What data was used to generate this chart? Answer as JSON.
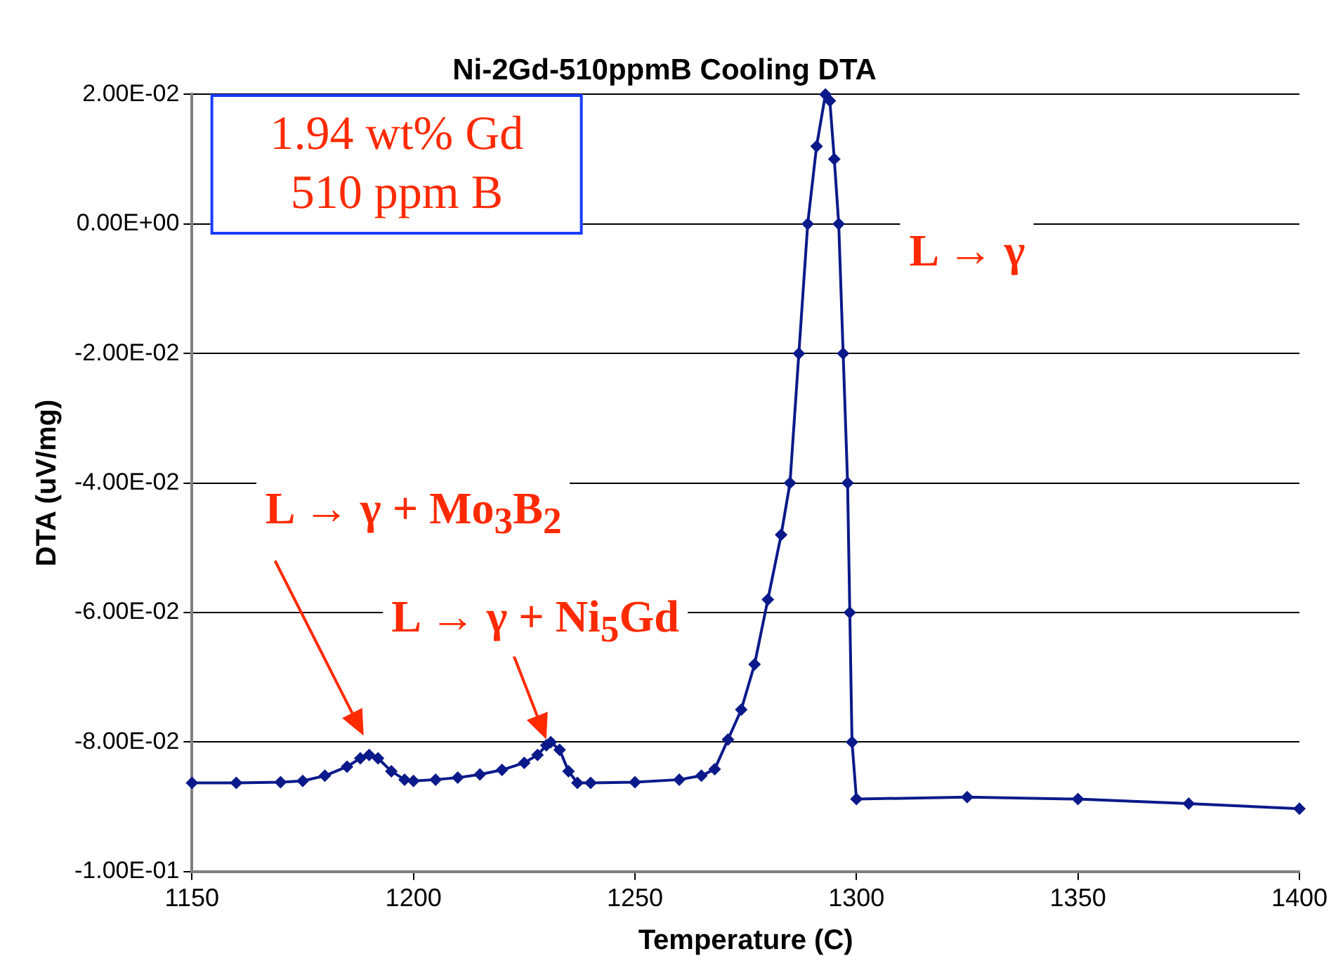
{
  "chart_data": {
    "type": "line",
    "title": "Ni-2Gd-510ppmB Cooling DTA",
    "xlabel": "Temperature (C)",
    "ylabel": "DTA (uV/mg)",
    "x": [
      1150,
      1160,
      1170,
      1175,
      1180,
      1185,
      1188,
      1190,
      1192,
      1195,
      1198,
      1200,
      1205,
      1210,
      1215,
      1220,
      1225,
      1228,
      1230,
      1231,
      1233,
      1235,
      1237,
      1240,
      1250,
      1260,
      1265,
      1268,
      1271,
      1274,
      1277,
      1280,
      1283,
      1285,
      1287,
      1289,
      1291,
      1293,
      1294,
      1295,
      1296,
      1297,
      1298,
      1298.5,
      1299,
      1300,
      1325,
      1350,
      1375,
      1400
    ],
    "series": [
      {
        "color": "#0b1a8a",
        "values": [
          -0.0863,
          -0.0863,
          -0.0862,
          -0.086,
          -0.0852,
          -0.0838,
          -0.0825,
          -0.082,
          -0.0825,
          -0.0845,
          -0.0858,
          -0.086,
          -0.0858,
          -0.0855,
          -0.085,
          -0.0843,
          -0.0832,
          -0.082,
          -0.0805,
          -0.08,
          -0.0812,
          -0.0845,
          -0.0863,
          -0.0863,
          -0.0862,
          -0.0858,
          -0.0852,
          -0.0842,
          -0.0796,
          -0.075,
          -0.068,
          -0.058,
          -0.048,
          -0.04,
          -0.02,
          0.0,
          0.012,
          0.02,
          0.019,
          0.01,
          0.0,
          -0.02,
          -0.04,
          -0.06,
          -0.08,
          -0.0888,
          -0.0885,
          -0.0888,
          -0.0895,
          -0.0903
        ]
      }
    ],
    "xlim": [
      1150,
      1400
    ],
    "xticks": [
      1150,
      1200,
      1250,
      1300,
      1350,
      1400
    ],
    "ylim": [
      -0.1,
      0.02
    ],
    "yticks": [
      {
        "value": 0.02,
        "label": "2.00E-02"
      },
      {
        "value": 0,
        "label": "0.00E+00"
      },
      {
        "value": -0.02,
        "label": "-2.00E-02"
      },
      {
        "value": -0.04,
        "label": "-4.00E-02"
      },
      {
        "value": -0.06,
        "label": "-6.00E-02"
      },
      {
        "value": -0.08,
        "label": "-8.00E-02"
      },
      {
        "value": -0.1,
        "label": "-1.00E-01"
      }
    ],
    "grid": "y",
    "legend": false,
    "marker": "diamond",
    "line_style": "solid",
    "annotations": [
      "1.94 wt% Gd\n510 ppm B",
      "L → γ",
      "L → γ + Mo$_{3}$B$_{2}$",
      "L → γ + Ni$_{5}$Gd"
    ]
  }
}
